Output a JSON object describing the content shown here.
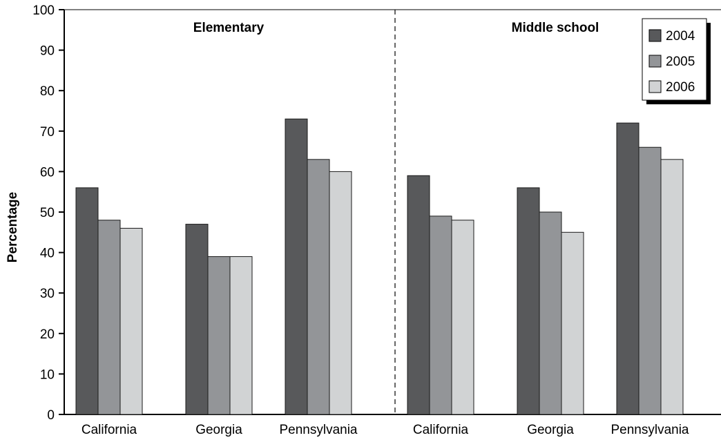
{
  "chart_data": {
    "type": "bar",
    "ylabel": "Percentage",
    "ylim": [
      0,
      100
    ],
    "yticks": [
      0,
      10,
      20,
      30,
      40,
      50,
      60,
      70,
      80,
      90,
      100
    ],
    "grid": false,
    "legend_position": "top-right",
    "groups": [
      {
        "label": "Elementary",
        "categories": [
          "California",
          "Georgia",
          "Pennsylvania"
        ],
        "series": [
          {
            "name": "2004",
            "values": [
              56,
              47,
              73
            ]
          },
          {
            "name": "2005",
            "values": [
              48,
              39,
              63
            ]
          },
          {
            "name": "2006",
            "values": [
              46,
              39,
              60
            ]
          }
        ]
      },
      {
        "label": "Middle school",
        "categories": [
          "California",
          "Georgia",
          "Pennsylvania"
        ],
        "series": [
          {
            "name": "2004",
            "values": [
              59,
              56,
              72
            ]
          },
          {
            "name": "2005",
            "values": [
              49,
              50,
              66
            ]
          },
          {
            "name": "2006",
            "values": [
              48,
              45,
              63
            ]
          }
        ]
      }
    ],
    "legend": [
      "2004",
      "2005",
      "2006"
    ],
    "colors": {
      "2004": "#58595b",
      "2005": "#939598",
      "2006": "#d1d3d4"
    }
  }
}
